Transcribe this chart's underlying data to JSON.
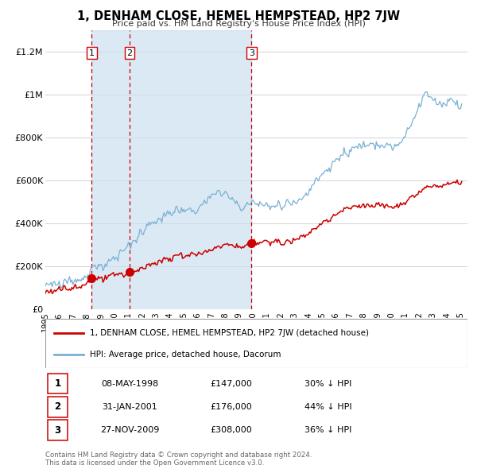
{
  "title": "1, DENHAM CLOSE, HEMEL HEMPSTEAD, HP2 7JW",
  "subtitle": "Price paid vs. HM Land Registry's House Price Index (HPI)",
  "legend_label_red": "1, DENHAM CLOSE, HEMEL HEMPSTEAD, HP2 7JW (detached house)",
  "legend_label_blue": "HPI: Average price, detached house, Dacorum",
  "footer": "Contains HM Land Registry data © Crown copyright and database right 2024.\nThis data is licensed under the Open Government Licence v3.0.",
  "transactions": [
    {
      "id": 1,
      "date": "08-MAY-1998",
      "price": 147000,
      "hpi_pct": "30% ↓ HPI",
      "year": 1998.36
    },
    {
      "id": 2,
      "date": "31-JAN-2001",
      "price": 176000,
      "hpi_pct": "44% ↓ HPI",
      "year": 2001.08
    },
    {
      "id": 3,
      "date": "27-NOV-2009",
      "price": 308000,
      "hpi_pct": "36% ↓ HPI",
      "year": 2009.9
    }
  ],
  "shade_x0": 1998.36,
  "shade_x1": 2009.9,
  "shade_color": "#cce0f0",
  "shade_alpha": 0.7,
  "red_color": "#cc0000",
  "blue_color": "#7ab0d4",
  "vline_color": "#cc0000",
  "dot_color": "#cc0000",
  "dot_size": 7,
  "grid_color": "#cccccc",
  "bg_color": "#ffffff",
  "plot_bg_color": "#ffffff",
  "ylim": [
    0,
    1300000
  ],
  "xlim": [
    1995,
    2025.5
  ],
  "yticks": [
    0,
    200000,
    400000,
    600000,
    800000,
    1000000,
    1200000
  ],
  "ytick_labels": [
    "£0",
    "£200K",
    "£400K",
    "£600K",
    "£800K",
    "£1M",
    "£1.2M"
  ],
  "xticks": [
    1995,
    1996,
    1997,
    1998,
    1999,
    2000,
    2001,
    2002,
    2003,
    2004,
    2005,
    2006,
    2007,
    2008,
    2009,
    2010,
    2011,
    2012,
    2013,
    2014,
    2015,
    2016,
    2017,
    2018,
    2019,
    2020,
    2021,
    2022,
    2023,
    2024,
    2025
  ]
}
